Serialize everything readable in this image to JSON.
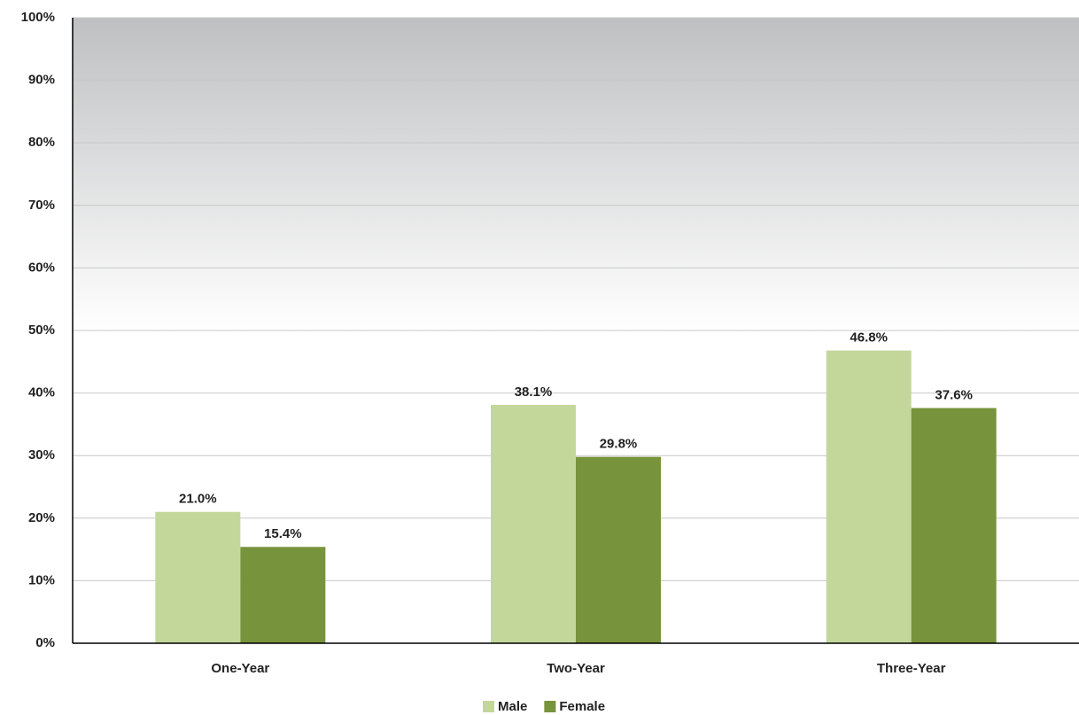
{
  "chart_data": {
    "type": "bar",
    "categories": [
      "One-Year",
      "Two-Year",
      "Three-Year"
    ],
    "series": [
      {
        "name": "Male",
        "color": "#c4d79b",
        "values": [
          21.0,
          38.1,
          46.8
        ],
        "value_labels": [
          "21.0%",
          "38.1%",
          "46.8%"
        ]
      },
      {
        "name": "Female",
        "color": "#77933c",
        "values": [
          15.4,
          29.8,
          37.6
        ],
        "value_labels": [
          "15.4%",
          "29.8%",
          "37.6%"
        ]
      }
    ],
    "ylim": [
      0,
      100
    ],
    "yticks": [
      {
        "value": 0,
        "label": "0%"
      },
      {
        "value": 10,
        "label": "10%"
      },
      {
        "value": 20,
        "label": "20%"
      },
      {
        "value": 30,
        "label": "30%"
      },
      {
        "value": 40,
        "label": "40%"
      },
      {
        "value": 50,
        "label": "50%"
      },
      {
        "value": 60,
        "label": "60%"
      },
      {
        "value": 70,
        "label": "70%"
      },
      {
        "value": 80,
        "label": "80%"
      },
      {
        "value": 90,
        "label": "90%"
      },
      {
        "value": 100,
        "label": "100%"
      }
    ],
    "grid": true,
    "legend": "bottom"
  }
}
